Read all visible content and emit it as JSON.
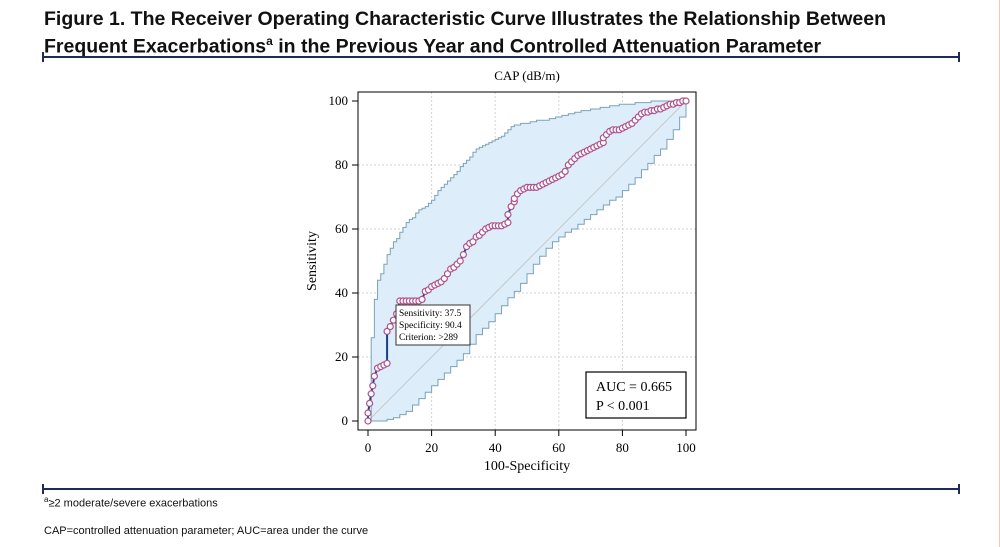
{
  "figure": {
    "title_line1": "Figure 1. The Receiver Operating Characteristic Curve Illustrates the Relationship Between",
    "title_line2_pre": "Frequent Exacerbations",
    "title_line2_sup": "a",
    "title_line2_post": " in the Previous Year and Controlled Attenuation Parameter"
  },
  "footnotes": {
    "note_a_sup": "a",
    "note_a": "≥2 moderate/severe exacerbations",
    "abbrev": "CAP=controlled attenuation parameter; AUC=area under the curve"
  },
  "colors": {
    "ci_fill": "#ddeefa",
    "ci_line": "#7aa2b8",
    "roc_line": "#1b3f86",
    "marker": "#b0508c",
    "diagonal": "#c7c7c7",
    "grid": "#d2d2d2",
    "rule": "#1d2a5b"
  },
  "chart_data": {
    "type": "line",
    "title": "CAP (dB/m)",
    "xlabel": "100-Specificity",
    "ylabel": "Sensitivity",
    "xlim": [
      0,
      100
    ],
    "ylim": [
      0,
      100
    ],
    "xticks": [
      0,
      20,
      40,
      60,
      80,
      100
    ],
    "yticks": [
      0,
      20,
      40,
      60,
      80,
      100
    ],
    "grid": true,
    "series": [
      {
        "name": "",
        "x": [
          0,
          0,
          0.5,
          1,
          1.5,
          2,
          3,
          4,
          5,
          6,
          6,
          7,
          8,
          9,
          10,
          11,
          12,
          13,
          14,
          15,
          16,
          17,
          18,
          19,
          20,
          21,
          22,
          23,
          24,
          25,
          26,
          27,
          28,
          29,
          30,
          31,
          32,
          33,
          34,
          35,
          36,
          37,
          38,
          39,
          40,
          41,
          42,
          43,
          44,
          44,
          45,
          46,
          46,
          47,
          48,
          49,
          50,
          51,
          52,
          53,
          54,
          55,
          56,
          57,
          58,
          59,
          60,
          61,
          62,
          63,
          64,
          65,
          66,
          67,
          68,
          69,
          70,
          71,
          72,
          73,
          74,
          74,
          75,
          76,
          77,
          78,
          79,
          80,
          81,
          82,
          83,
          84,
          85,
          86,
          87,
          88,
          89,
          90,
          91,
          92,
          93,
          94,
          95,
          96,
          97,
          98,
          99,
          100
        ],
        "y": [
          0,
          2.5,
          5.5,
          8.5,
          11,
          14,
          16.5,
          17,
          17.5,
          18,
          28,
          29.5,
          31.5,
          33.5,
          37.5,
          37.5,
          37.5,
          37.5,
          37.5,
          37.5,
          37.5,
          38,
          40.5,
          41,
          42,
          42.5,
          43,
          43.5,
          44.5,
          46,
          47.5,
          48,
          49,
          50,
          52,
          54.5,
          55.5,
          56,
          57.5,
          58,
          59,
          60,
          60.5,
          61,
          61,
          61,
          61,
          61.5,
          62,
          64.5,
          67,
          68.5,
          69.5,
          71,
          72,
          72.5,
          73,
          73,
          73,
          73,
          73.5,
          74,
          74.5,
          75,
          75.5,
          76,
          76.5,
          77,
          78,
          80,
          81,
          82,
          83,
          83.5,
          84,
          84.5,
          85,
          85.5,
          86,
          86.5,
          87,
          88.5,
          89.5,
          90.5,
          91,
          91,
          91,
          91.5,
          92,
          92.5,
          93,
          94,
          95,
          96,
          96.5,
          96.5,
          97,
          97,
          97.5,
          97.5,
          98,
          98.5,
          99,
          99,
          99.5,
          99.5,
          100,
          100
        ]
      }
    ],
    "ci_upper_x": [
      0,
      1,
      2,
      3,
      4,
      5,
      6,
      7,
      8,
      9,
      10,
      11,
      12,
      13,
      14,
      15,
      16,
      17,
      18,
      19,
      20,
      21,
      22,
      23,
      24,
      25,
      26,
      27,
      28,
      29,
      30,
      31,
      32,
      33,
      34,
      35,
      36,
      37,
      38,
      39,
      40,
      41,
      42,
      43,
      44,
      45,
      46,
      47,
      48,
      49,
      50,
      51,
      52,
      53,
      54,
      55,
      56,
      57,
      58,
      59,
      60,
      61,
      62,
      63,
      64,
      65,
      66,
      67,
      68,
      69,
      70,
      71,
      72,
      73,
      74,
      75,
      76,
      77,
      78,
      79,
      80,
      81,
      82,
      83,
      84,
      85,
      86,
      87,
      88,
      89,
      90,
      91,
      92,
      93,
      94,
      95,
      96,
      97,
      98,
      99,
      100
    ],
    "ci_upper_y": [
      0,
      26,
      38,
      44,
      46,
      49,
      52,
      54,
      56,
      57,
      59,
      60.5,
      62,
      63,
      63.5,
      65,
      66,
      66.5,
      67,
      68,
      69,
      70.5,
      72,
      73,
      74,
      75,
      76,
      77,
      78,
      79.5,
      80.5,
      81.5,
      82.5,
      84,
      85,
      85.5,
      86,
      86.5,
      87,
      87.5,
      88,
      88.5,
      89,
      90,
      91,
      92,
      92.5,
      92.5,
      93,
      93,
      93,
      93.5,
      93.5,
      94,
      94,
      94,
      94,
      94.5,
      94.5,
      95,
      95,
      95.5,
      95.5,
      96,
      96,
      96.5,
      96.5,
      97,
      97,
      97,
      97.5,
      97.5,
      97.5,
      98,
      98,
      98,
      98.5,
      98.5,
      98.5,
      99,
      99,
      99,
      99,
      99,
      99.5,
      99.5,
      99.5,
      99.5,
      99.5,
      100,
      100,
      100,
      100,
      100,
      100,
      100,
      100,
      100,
      100,
      100,
      100
    ],
    "ci_lower_x": [
      0,
      2,
      4,
      6,
      8,
      10,
      12,
      14,
      16,
      18,
      20,
      22,
      24,
      26,
      28,
      30,
      32,
      34,
      36,
      38,
      40,
      42,
      44,
      46,
      48,
      50,
      52,
      54,
      56,
      58,
      60,
      62,
      64,
      66,
      68,
      70,
      72,
      74,
      76,
      78,
      80,
      82,
      84,
      86,
      88,
      90,
      92,
      94,
      96,
      98,
      100
    ],
    "ci_lower_y": [
      0,
      0,
      0,
      0.5,
      1,
      2,
      3,
      5,
      7,
      9,
      11,
      13,
      15,
      17,
      19,
      21,
      24,
      27,
      29,
      31,
      33.5,
      36,
      38.5,
      40.5,
      43,
      46,
      49,
      51.5,
      54,
      56,
      57.5,
      59,
      60,
      61.5,
      63,
      64.5,
      66,
      67.5,
      69,
      70,
      72,
      74,
      76,
      78.5,
      80.5,
      83,
      85,
      88,
      91,
      95,
      100
    ],
    "annotation": {
      "sensitivity": "Sensitivity: 37.5",
      "specificity": "Specificity: 90.4",
      "criterion": "Criterion: >289",
      "point_x": 9.6,
      "point_y": 37.5
    },
    "stats": {
      "auc": "AUC = 0.665",
      "p": "P < 0.001"
    }
  }
}
